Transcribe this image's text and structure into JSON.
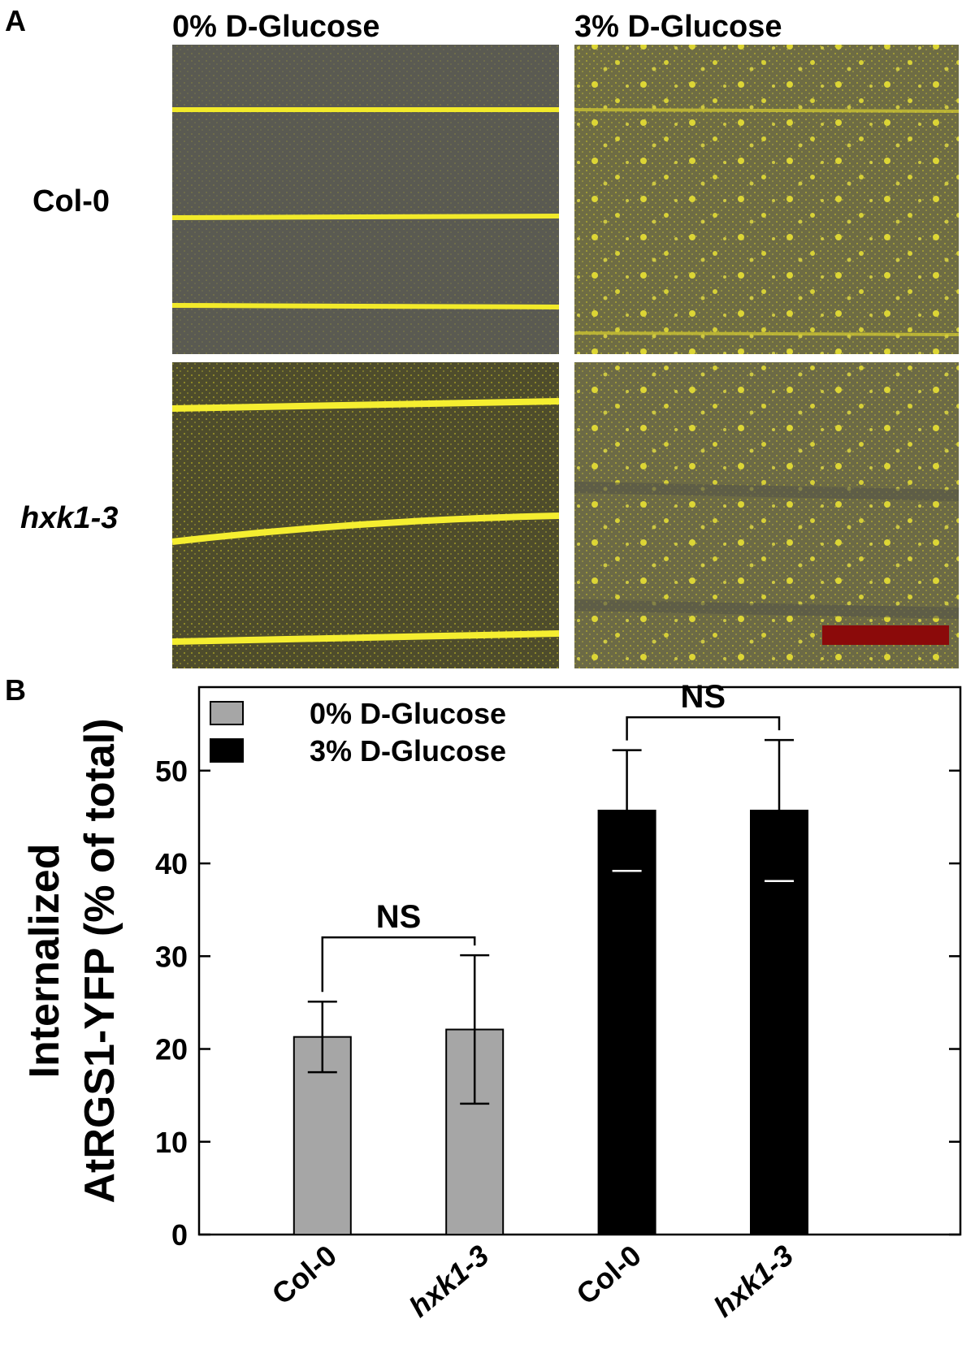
{
  "panel_a": {
    "label": "A",
    "columns": [
      "0% D-Glucose",
      "3% D-Glucose"
    ],
    "rows": [
      "Col-0",
      "hxk1-3"
    ]
  },
  "chart_data": {
    "type": "bar",
    "panel_label": "B",
    "ylabel": [
      "Internalized",
      "AtRGS1-YFP (% of total)"
    ],
    "categories": [
      "Col-0",
      "hxk1-3",
      "Col-0",
      "hxk1-3"
    ],
    "series": [
      {
        "name": "0% D-Glucose",
        "color": "#a6a6a6",
        "values": [
          21.3,
          22.1,
          null,
          null
        ],
        "errors": [
          3.8,
          8,
          null,
          null
        ]
      },
      {
        "name": "3% D-Glucose",
        "color": "#000000",
        "values": [
          null,
          null,
          45.7,
          45.7
        ],
        "errors": [
          null,
          null,
          6.5,
          7.6
        ]
      }
    ],
    "annotations": [
      "NS",
      "NS"
    ],
    "ylim": [
      0,
      59
    ],
    "yticks": [
      0,
      10,
      20,
      30,
      40,
      50
    ],
    "legend": "upper left"
  }
}
